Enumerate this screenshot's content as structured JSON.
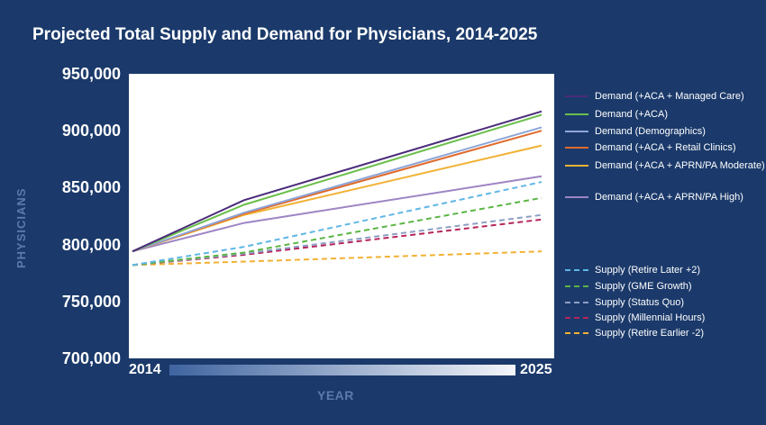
{
  "chart_data": {
    "type": "line",
    "title": "Projected Total Supply and Demand for Physicians, 2014-2025",
    "xlabel": "YEAR",
    "ylabel": "PHYSICIANS",
    "x": [
      2014,
      2017,
      2025
    ],
    "x_tick_labels": [
      "2014",
      "2025"
    ],
    "xlim": [
      2014,
      2025
    ],
    "ylim": [
      700000,
      950000
    ],
    "y_ticks": [
      700000,
      750000,
      800000,
      850000,
      900000,
      950000
    ],
    "y_tick_labels": [
      "700,000",
      "750,000",
      "800,000",
      "850,000",
      "900,000",
      "950,000"
    ],
    "grid": false,
    "legend_position": "right",
    "series": [
      {
        "name": "Demand (+ACA + Managed Care)",
        "style": "solid",
        "color": "#4b2c7a",
        "values": [
          794000,
          839000,
          917000
        ]
      },
      {
        "name": "Demand (+ACA)",
        "style": "solid",
        "color": "#6abf4b",
        "values": [
          794000,
          835000,
          914000
        ]
      },
      {
        "name": "Demand (Demographics)",
        "style": "solid",
        "color": "#8ea6d6",
        "values": [
          794000,
          828000,
          903000
        ]
      },
      {
        "name": "Demand (+ACA + Retail Clinics)",
        "style": "solid",
        "color": "#e06a2c",
        "values": [
          794000,
          827000,
          900000
        ]
      },
      {
        "name": "Demand (+ACA + APRN/PA Moderate)",
        "style": "solid",
        "color": "#f2b134",
        "values": [
          794000,
          826000,
          887000
        ]
      },
      {
        "name": "Demand (+ACA + APRN/PA High)",
        "style": "solid",
        "color": "#9d85c4",
        "values": [
          794000,
          819000,
          860000
        ]
      },
      {
        "name": "Supply (Retire Later +2)",
        "style": "dashed",
        "color": "#5fb6e6",
        "values": [
          782000,
          798000,
          855000
        ]
      },
      {
        "name": "Supply (GME Growth)",
        "style": "dashed",
        "color": "#5bb544",
        "values": [
          782000,
          793000,
          841000
        ]
      },
      {
        "name": "Supply (Status Quo)",
        "style": "dashed",
        "color": "#8c9fc4",
        "values": [
          782000,
          792000,
          826000
        ]
      },
      {
        "name": "Supply (Millennial Hours)",
        "style": "dashed",
        "color": "#b5245b",
        "values": [
          782000,
          791000,
          822000
        ]
      },
      {
        "name": "Supply (Retire Earlier -2)",
        "style": "dashed",
        "color": "#f2b134",
        "values": [
          782000,
          785000,
          794000
        ]
      }
    ]
  }
}
